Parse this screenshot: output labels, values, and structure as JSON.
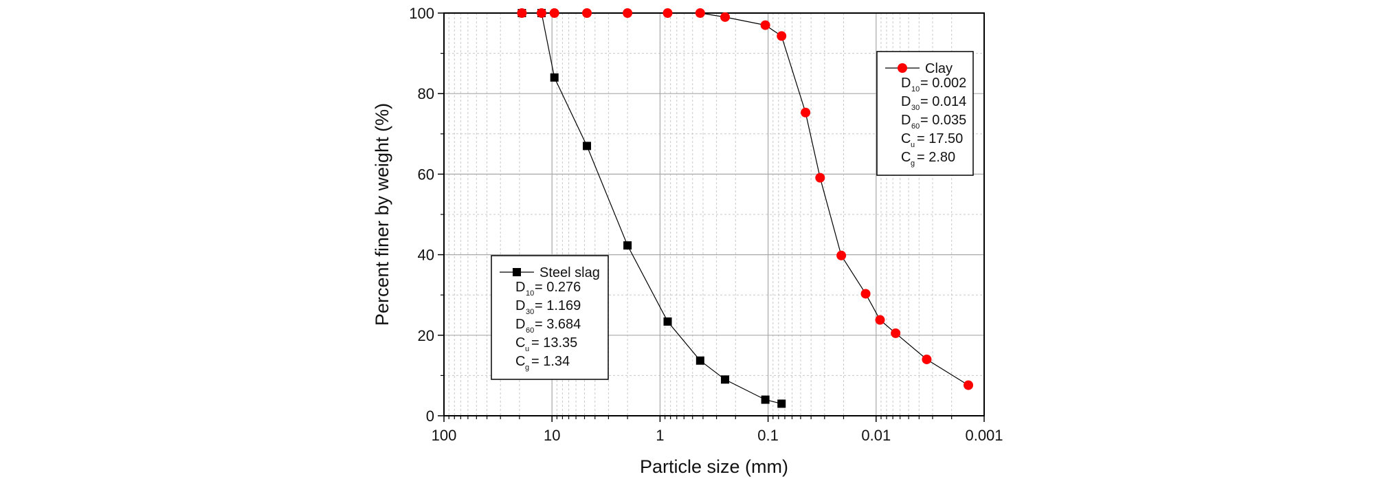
{
  "chart_data": {
    "type": "scatter",
    "title": "",
    "xlabel": "Particle size (mm)",
    "ylabel": "Percent finer by weight (%)",
    "x_scale": "log",
    "x_reversed": true,
    "xlim": [
      100,
      0.001
    ],
    "ylim": [
      0,
      100
    ],
    "x_ticks": [
      100,
      10,
      1,
      0.1,
      0.01,
      0.001
    ],
    "x_tick_labels": [
      "100",
      "10",
      "1",
      "0.1",
      "0.01",
      "0.001"
    ],
    "y_ticks": [
      0,
      20,
      40,
      60,
      80,
      100
    ],
    "y_tick_labels": [
      "0",
      "20",
      "40",
      "60",
      "80",
      "100"
    ],
    "grid": true,
    "series": [
      {
        "name": "Steel slag",
        "marker": "square",
        "color": "#000000",
        "x": [
          19,
          12.5,
          9.5,
          4.75,
          2,
          0.85,
          0.425,
          0.25,
          0.106,
          0.075
        ],
        "y": [
          100,
          100,
          84,
          67,
          42.3,
          23.4,
          13.7,
          9.0,
          4.0,
          3.0
        ]
      },
      {
        "name": "Clay",
        "marker": "circle",
        "color": "#ff0000",
        "x": [
          19,
          12.5,
          9.5,
          4.75,
          2,
          0.85,
          0.425,
          0.25,
          0.106,
          0.075,
          0.045,
          0.033,
          0.021,
          0.0125,
          0.0092,
          0.0066,
          0.0034,
          0.0014
        ],
        "y": [
          100,
          100,
          100,
          100,
          100,
          100,
          100,
          99,
          97,
          94.3,
          75.3,
          59.1,
          39.8,
          30.3,
          23.8,
          20.5,
          14.0,
          7.6
        ]
      }
    ],
    "legends": [
      {
        "series": "Steel slag",
        "placement": "lower-left",
        "params": [
          {
            "sym": "D",
            "sub": "10",
            "text": "= 0.276"
          },
          {
            "sym": "D",
            "sub": "30",
            "text": "= 1.169"
          },
          {
            "sym": "D",
            "sub": "60",
            "text": "= 3.684"
          },
          {
            "sym": "C",
            "sub": "u",
            "text": "= 13.35"
          },
          {
            "sym": "C",
            "sub": "g",
            "text": "= 1.34"
          }
        ]
      },
      {
        "series": "Clay",
        "placement": "upper-right",
        "params": [
          {
            "sym": "D",
            "sub": "10",
            "text": "= 0.002"
          },
          {
            "sym": "D",
            "sub": "30",
            "text": "= 0.014"
          },
          {
            "sym": "D",
            "sub": "60",
            "text": "= 0.035"
          },
          {
            "sym": "C",
            "sub": "u",
            "text": "= 17.50"
          },
          {
            "sym": "C",
            "sub": "g",
            "text": "= 2.80"
          }
        ]
      }
    ]
  }
}
